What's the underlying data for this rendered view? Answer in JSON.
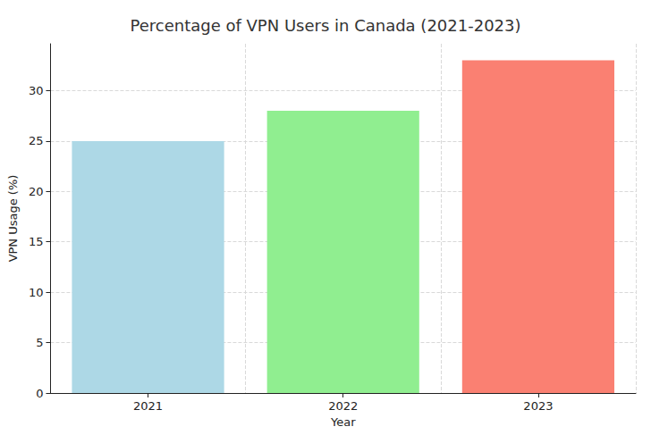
{
  "chart_data": {
    "type": "bar",
    "title": "Percentage of VPN Users in Canada (2021-2023)",
    "x_label": "Year",
    "y_label": "VPN Usage (%)",
    "categories": [
      "2021",
      "2022",
      "2023"
    ],
    "values": [
      25,
      28,
      33
    ],
    "colors": [
      "#add8e6",
      "#90ee90",
      "#fa8072"
    ],
    "ylim": [
      0,
      34.65
    ],
    "yticks": [
      0,
      5,
      10,
      15,
      20,
      25,
      30
    ],
    "grid": true
  }
}
